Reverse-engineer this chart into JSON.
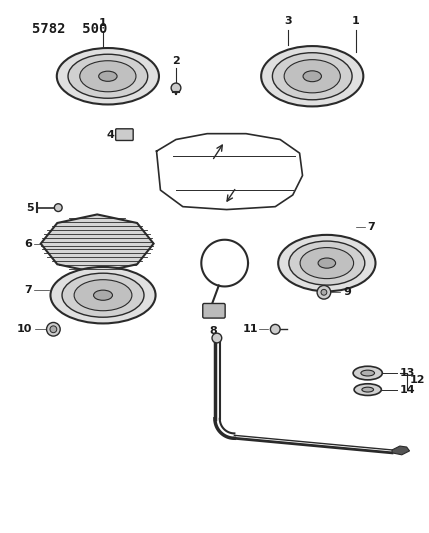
{
  "title": "5782  500",
  "bg_color": "#ffffff",
  "line_color": "#2a2a2a",
  "text_color": "#1a1a1a",
  "fig_width": 4.29,
  "fig_height": 5.33,
  "dpi": 100
}
